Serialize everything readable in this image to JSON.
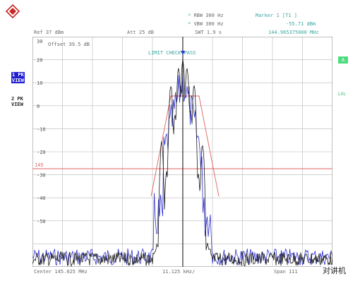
{
  "header": {
    "rbw": "RBW 300 Hz",
    "vbw": "VBW 300 Hz",
    "swt": "SWT 1.9 s",
    "marker_title": "Marker 1 [T1 ]",
    "marker_level": "-55.71 dBm",
    "marker_freq": "144.965375000 MHz",
    "ref": "Ref  37 dBm",
    "att": "Att  25 dB"
  },
  "side": {
    "trace1_a": "1 PK",
    "trace1_b": "VIEW",
    "trace2_a": "2 PK",
    "trace2_b": "VIEW",
    "a_badge": "A",
    "lvl": "LVL"
  },
  "plot": {
    "offset": "Offset  39.5 dB",
    "limit_check": "LIMIT CHECK    PASS",
    "limit_value": "145",
    "y_ticks": [
      "30",
      "20",
      "10",
      "0",
      "-10",
      "-20",
      "-30",
      "-40",
      "-50"
    ],
    "colors": {
      "grid": "#b8b8b8",
      "trace1": "#1a1a1a",
      "trace2": "#2f2fd0",
      "limit": "#e06060",
      "marker": "#2f2fd0"
    }
  },
  "footer": {
    "center": "Center  145.025 MHz",
    "span_per_div": "11.125 kHz/",
    "span": "Span  111"
  },
  "watermark": "对讲机"
}
